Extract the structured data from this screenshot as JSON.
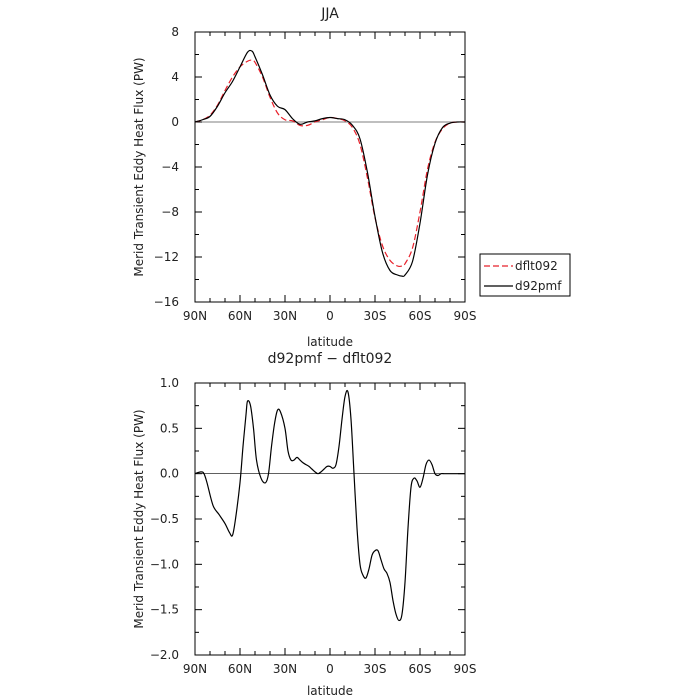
{
  "chart_data": [
    {
      "type": "line",
      "title": "JJA",
      "xlabel": "latitude",
      "ylabel": "Merid Transient Eddy Heat Flux (PW)",
      "xlim": [
        90,
        -90
      ],
      "ylim": [
        -16,
        8
      ],
      "x_ticks": [
        90,
        60,
        30,
        0,
        -30,
        -60,
        -90
      ],
      "x_tick_labels": [
        "90N",
        "60N",
        "30N",
        "0",
        "30S",
        "60S",
        "90S"
      ],
      "y_ticks": [
        8,
        4,
        0,
        -4,
        -8,
        -12,
        -16
      ],
      "y_tick_labels": [
        "8",
        "4",
        "0",
        "−4",
        "−8",
        "−12",
        "−16"
      ],
      "legend_position": "right",
      "series": [
        {
          "name": "dflt092",
          "color": "#e8202a",
          "dash": "dashed",
          "x": [
            90,
            85,
            80,
            75,
            70,
            65,
            60,
            55,
            52,
            50,
            45,
            40,
            35,
            30,
            25,
            20,
            15,
            10,
            5,
            0,
            -5,
            -10,
            -15,
            -20,
            -25,
            -30,
            -35,
            -40,
            -45,
            -48,
            -50,
            -55,
            -60,
            -65,
            -70,
            -75,
            -80,
            -85,
            -90
          ],
          "y": [
            0.0,
            0.2,
            0.6,
            1.5,
            2.8,
            4.0,
            4.9,
            5.4,
            5.5,
            5.3,
            4.0,
            2.2,
            0.8,
            0.2,
            0.1,
            -0.3,
            -0.3,
            0.0,
            0.2,
            0.4,
            0.3,
            0.1,
            -0.5,
            -2.0,
            -5.0,
            -8.5,
            -11.0,
            -12.3,
            -12.8,
            -12.8,
            -12.6,
            -11.2,
            -8.0,
            -4.2,
            -1.8,
            -0.6,
            -0.1,
            0.0,
            0.0
          ]
        },
        {
          "name": "d92pmf",
          "color": "#000000",
          "dash": "solid",
          "x": [
            90,
            85,
            80,
            75,
            70,
            65,
            60,
            55,
            52,
            50,
            45,
            40,
            35,
            30,
            25,
            20,
            15,
            10,
            5,
            0,
            -5,
            -10,
            -15,
            -20,
            -25,
            -30,
            -35,
            -40,
            -45,
            -48,
            -50,
            -55,
            -60,
            -65,
            -70,
            -75,
            -80,
            -85,
            -90
          ],
          "y": [
            0.0,
            0.2,
            0.5,
            1.4,
            2.6,
            3.6,
            4.9,
            6.2,
            6.3,
            5.8,
            4.2,
            2.4,
            1.4,
            1.1,
            0.3,
            -0.2,
            0.0,
            0.1,
            0.3,
            0.4,
            0.3,
            0.2,
            -0.3,
            -1.5,
            -4.5,
            -8.4,
            -11.6,
            -13.2,
            -13.6,
            -13.7,
            -13.6,
            -12.4,
            -9.0,
            -4.7,
            -1.9,
            -0.5,
            -0.1,
            0.0,
            0.0
          ]
        }
      ]
    },
    {
      "type": "line",
      "title": "d92pmf − dflt092",
      "xlabel": "latitude",
      "ylabel": "Merid Transient Eddy Heat Flux (PW)",
      "xlim": [
        90,
        -90
      ],
      "ylim": [
        -2.0,
        1.0
      ],
      "x_ticks": [
        90,
        60,
        30,
        0,
        -30,
        -60,
        -90
      ],
      "x_tick_labels": [
        "90N",
        "60N",
        "30N",
        "0",
        "30S",
        "60S",
        "90S"
      ],
      "y_ticks": [
        1.0,
        0.5,
        0.0,
        -0.5,
        -1.0,
        -1.5,
        -2.0
      ],
      "y_tick_labels": [
        "1.0",
        "0.5",
        "0.0",
        "−0.5",
        "−1.0",
        "−1.5",
        "−2.0"
      ],
      "series": [
        {
          "color": "#000000",
          "dash": "solid",
          "x": [
            90,
            86,
            84,
            82,
            78,
            74,
            70,
            67,
            65,
            63,
            60,
            58,
            56,
            55,
            53,
            51,
            49,
            46,
            43,
            41,
            39,
            37,
            35,
            33,
            30,
            28,
            26,
            24,
            22,
            20,
            18,
            16,
            14,
            12,
            10,
            8,
            6,
            4,
            2,
            0,
            -2,
            -4,
            -6,
            -8,
            -10,
            -12,
            -14,
            -16,
            -18,
            -20,
            -22,
            -24,
            -26,
            -28,
            -30,
            -32,
            -34,
            -36,
            -38,
            -40,
            -42,
            -44,
            -46,
            -48,
            -50,
            -52,
            -54,
            -56,
            -58,
            -60,
            -62,
            -64,
            -66,
            -68,
            -70,
            -72,
            -74,
            -76,
            -78,
            -80,
            -82,
            -84,
            -86,
            -88,
            -90
          ],
          "y": [
            0.0,
            0.02,
            0.0,
            -0.1,
            -0.35,
            -0.45,
            -0.55,
            -0.65,
            -0.68,
            -0.5,
            -0.1,
            0.3,
            0.65,
            0.8,
            0.75,
            0.5,
            0.15,
            -0.05,
            -0.1,
            0.0,
            0.3,
            0.55,
            0.7,
            0.68,
            0.5,
            0.25,
            0.15,
            0.15,
            0.18,
            0.15,
            0.12,
            0.1,
            0.08,
            0.05,
            0.02,
            0.0,
            0.02,
            0.05,
            0.08,
            0.08,
            0.06,
            0.1,
            0.3,
            0.6,
            0.85,
            0.9,
            0.6,
            0.0,
            -0.6,
            -1.0,
            -1.12,
            -1.15,
            -1.05,
            -0.9,
            -0.85,
            -0.85,
            -0.95,
            -1.05,
            -1.1,
            -1.2,
            -1.4,
            -1.55,
            -1.62,
            -1.55,
            -1.2,
            -0.6,
            -0.15,
            -0.05,
            -0.08,
            -0.15,
            -0.05,
            0.1,
            0.15,
            0.1,
            0.0,
            -0.02,
            0.0,
            0.0,
            0.0,
            0.0,
            0.0,
            0.0,
            0.0,
            0.0,
            0.0
          ]
        }
      ]
    }
  ]
}
